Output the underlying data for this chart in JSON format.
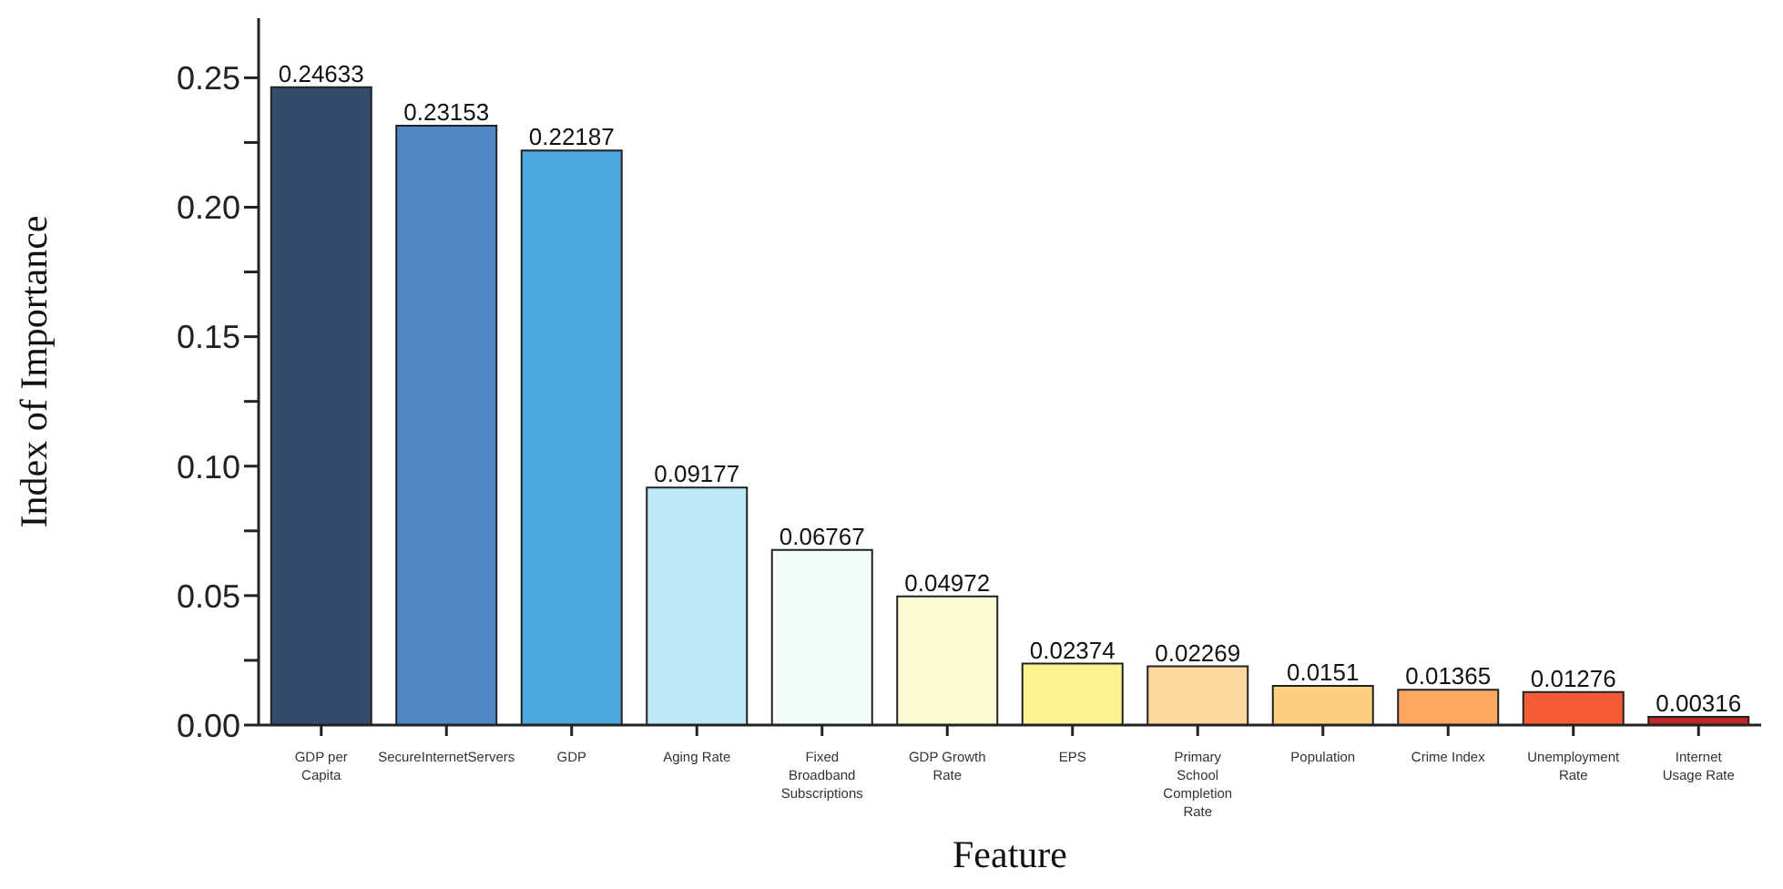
{
  "chart_data": {
    "type": "bar",
    "xlabel": "Feature",
    "ylabel": "Index of Importance",
    "categories": [
      "GDP per Capita",
      "SecureInternetServers",
      "GDP",
      "Aging Rate",
      "Fixed Broadband Subscriptions",
      "GDP Growth Rate",
      "EPS",
      "Primary School Completion Rate",
      "Population",
      "Crime Index",
      "Unemployment Rate",
      "Internet Usage Rate"
    ],
    "values": [
      0.24633,
      0.23153,
      0.22187,
      0.09177,
      0.06767,
      0.04972,
      0.02374,
      0.02269,
      0.0151,
      0.01365,
      0.01276,
      0.00316
    ],
    "colors": [
      "#344c6c",
      "#5088c4",
      "#4ea8e0",
      "#bde8f8",
      "#f4fcfc",
      "#fcfcd4",
      "#fcf490",
      "#fcd8a0",
      "#fcd080",
      "#fca860",
      "#f45c38",
      "#c02828"
    ],
    "ylim": [
      0,
      0.273
    ],
    "yticks": [
      {
        "value": 0,
        "label": "0.00"
      },
      {
        "value": 0.025,
        "label": null
      },
      {
        "value": 0.05,
        "label": "0.05"
      },
      {
        "value": 0.075,
        "label": null
      },
      {
        "value": 0.1,
        "label": "0.10"
      },
      {
        "value": 0.125,
        "label": null
      },
      {
        "value": 0.15,
        "label": "0.15"
      },
      {
        "value": 0.175,
        "label": null
      },
      {
        "value": 0.2,
        "label": "0.20"
      },
      {
        "value": 0.225,
        "label": null
      },
      {
        "value": 0.25,
        "label": "0.25"
      }
    ],
    "data_labels": true,
    "grid": false,
    "legend": false
  }
}
